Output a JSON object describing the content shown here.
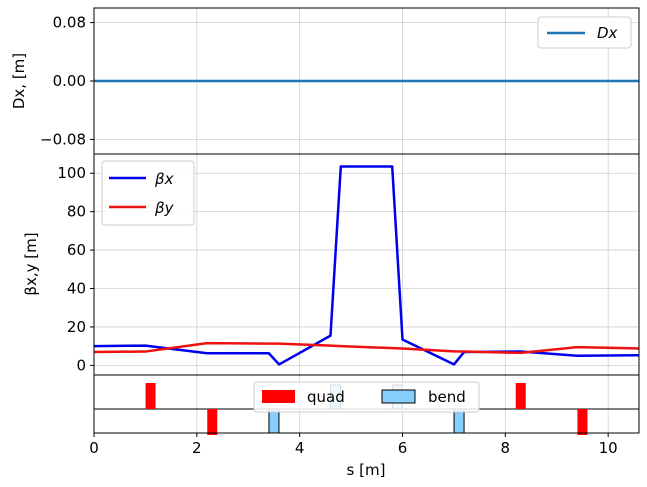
{
  "colors": {
    "dx": "#1f77b4",
    "beta_x": "#0000ee",
    "beta_y": "#ee1111",
    "quad": "#ff0000",
    "bend": "#87cefa",
    "grid": "#d0d0d0"
  },
  "chart_data": [
    {
      "type": "line",
      "panel": "dispersion",
      "ylabel": "Dx, [m]",
      "xlim": [
        0,
        10.6
      ],
      "ylim": [
        -0.1,
        0.1
      ],
      "yticks": [
        "0.08",
        "0.00",
        "−0.08"
      ],
      "ytick_values": [
        0.08,
        0.0,
        -0.08
      ],
      "grid": true,
      "legend_position": "top-right",
      "series": [
        {
          "name": "Dx",
          "x": [
            0,
            10.6
          ],
          "y": [
            0,
            0
          ]
        }
      ]
    },
    {
      "type": "line",
      "panel": "beta",
      "ylabel": "βx,y [m]",
      "xlim": [
        0,
        10.6
      ],
      "ylim": [
        -5,
        110
      ],
      "yticks": [
        "0",
        "20",
        "40",
        "60",
        "80",
        "100"
      ],
      "ytick_values": [
        0,
        20,
        40,
        60,
        80,
        100
      ],
      "grid": true,
      "legend_position": "top-left",
      "series": [
        {
          "name": "βx",
          "x": [
            0,
            1.0,
            2.2,
            3.4,
            3.6,
            4.6,
            4.8,
            5.8,
            6.0,
            7.0,
            7.2,
            8.3,
            9.4,
            10.6
          ],
          "y": [
            10,
            10.3,
            6.3,
            6.3,
            0.5,
            15.5,
            103.5,
            103.5,
            13.5,
            0.5,
            7.0,
            7.2,
            5.0,
            5.3
          ]
        },
        {
          "name": "βy",
          "x": [
            0,
            1.0,
            2.2,
            3.4,
            3.6,
            4.6,
            4.8,
            5.8,
            6.0,
            7.0,
            7.2,
            8.3,
            9.4,
            10.6
          ],
          "y": [
            7.0,
            7.2,
            11.6,
            11.3,
            11.3,
            10.3,
            10.0,
            9.0,
            8.8,
            7.3,
            7.2,
            6.5,
            9.5,
            8.8
          ]
        }
      ]
    },
    {
      "type": "bar",
      "panel": "lattice",
      "xlabel": "s [m]",
      "xlim": [
        0,
        10.6
      ],
      "xticks": [
        "0",
        "2",
        "4",
        "6",
        "8",
        "10"
      ],
      "xtick_values": [
        0,
        2,
        4,
        6,
        8,
        10
      ],
      "grid": true,
      "legend_position": "top-center",
      "legend": [
        {
          "name": "quad"
        },
        {
          "name": "bend"
        }
      ],
      "quads": [
        {
          "s": 1.1,
          "polarity": 1
        },
        {
          "s": 2.3,
          "polarity": -1
        },
        {
          "s": 8.3,
          "polarity": 1
        },
        {
          "s": 9.5,
          "polarity": -1
        }
      ],
      "bends": [
        {
          "s": 3.5,
          "side": -1
        },
        {
          "s": 4.7,
          "side": 1
        },
        {
          "s": 5.9,
          "side": 1
        },
        {
          "s": 7.1,
          "side": -1
        }
      ]
    }
  ]
}
